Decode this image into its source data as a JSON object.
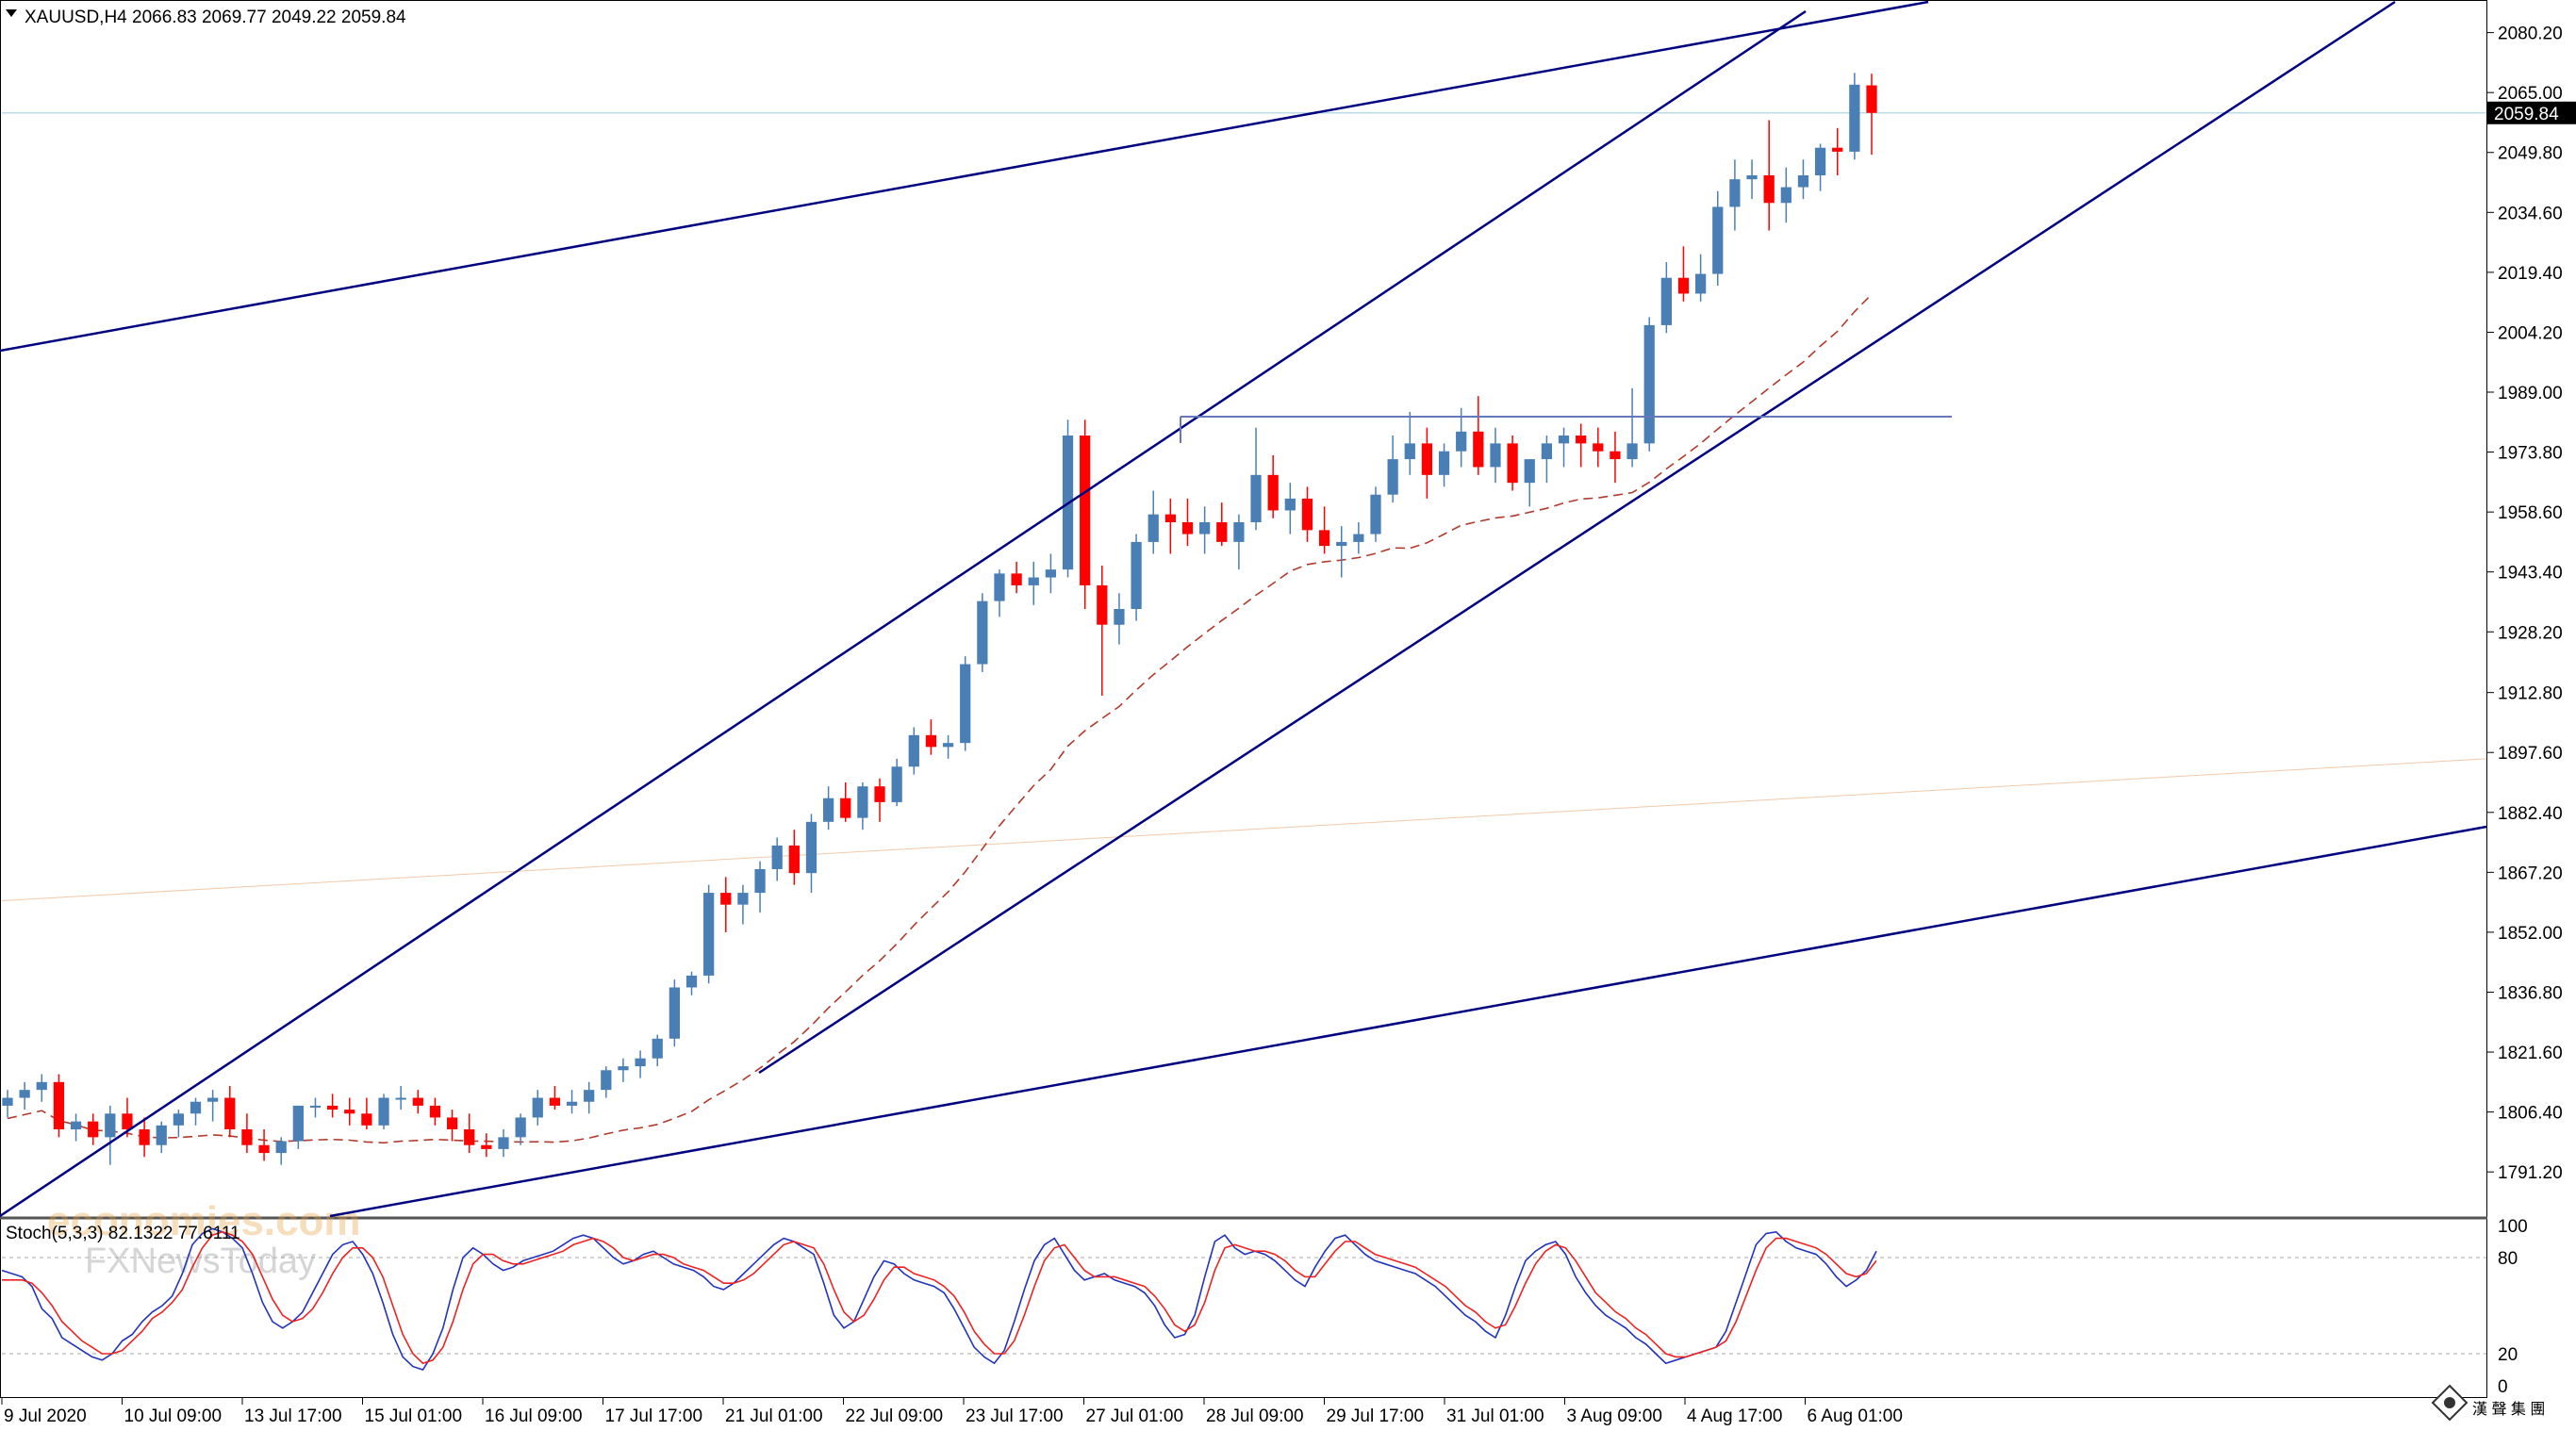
{
  "window": {
    "symbol_header": "XAUUSD,H4  2066.83 2069.77 2049.22 2059.84",
    "current_price_label": "2059.84"
  },
  "stoch_label": "Stoch(5,3,3) 82.1322 77.6111",
  "watermark": {
    "line1": "economies.com",
    "line2": "FXNewsToday",
    "corner_logo_text": "漢 聲 集 團"
  },
  "colors": {
    "bull": "#4a7fb5",
    "bear": "#ff0000",
    "channel": "#000080",
    "resistance": "#6677bb",
    "ma_dashed": "#b03a2e",
    "ma_faint": "#f2c8a8",
    "price_line": "#b8dde8",
    "stoch_main": "#2233bb",
    "stoch_signal": "#ee2222"
  },
  "chart_data": {
    "type": "candlestick",
    "title": "XAUUSD,H4",
    "ylim": [
      1780,
      2088
    ],
    "y_ticks": [
      "2080.20",
      "2065.00",
      "2049.80",
      "2034.60",
      "2019.40",
      "2004.20",
      "1989.00",
      "1973.80",
      "1958.60",
      "1943.40",
      "1928.20",
      "1912.80",
      "1897.60",
      "1882.40",
      "1867.20",
      "1852.00",
      "1836.80",
      "1821.60",
      "1806.40",
      "1791.20"
    ],
    "x_labels": [
      "9 Jul 2020",
      "10 Jul 09:00",
      "13 Jul 17:00",
      "15 Jul 01:00",
      "16 Jul 09:00",
      "17 Jul 17:00",
      "21 Jul 01:00",
      "22 Jul 09:00",
      "23 Jul 17:00",
      "27 Jul 01:00",
      "28 Jul 09:00",
      "29 Jul 17:00",
      "31 Jul 01:00",
      "3 Aug 09:00",
      "4 Aug 17:00",
      "6 Aug 01:00"
    ],
    "candles_ohlc": [
      [
        1808,
        1812,
        1805,
        1810
      ],
      [
        1810,
        1814,
        1807,
        1812
      ],
      [
        1812,
        1816,
        1809,
        1814
      ],
      [
        1814,
        1816,
        1800,
        1802
      ],
      [
        1802,
        1806,
        1799,
        1804
      ],
      [
        1804,
        1806,
        1798,
        1800
      ],
      [
        1800,
        1808,
        1793,
        1806
      ],
      [
        1806,
        1810,
        1800,
        1802
      ],
      [
        1802,
        1805,
        1795,
        1798
      ],
      [
        1798,
        1804,
        1796,
        1803
      ],
      [
        1803,
        1807,
        1800,
        1806
      ],
      [
        1806,
        1810,
        1803,
        1809
      ],
      [
        1809,
        1812,
        1804,
        1810
      ],
      [
        1810,
        1813,
        1800,
        1802
      ],
      [
        1802,
        1806,
        1796,
        1798
      ],
      [
        1798,
        1802,
        1794,
        1796
      ],
      [
        1796,
        1800,
        1793,
        1799
      ],
      [
        1799,
        1808,
        1797,
        1808
      ],
      [
        1808,
        1810,
        1805,
        1808
      ],
      [
        1808,
        1811,
        1805,
        1807
      ],
      [
        1807,
        1810,
        1803,
        1806
      ],
      [
        1806,
        1810,
        1802,
        1803
      ],
      [
        1803,
        1811,
        1802,
        1810
      ],
      [
        1810,
        1813,
        1807,
        1810
      ],
      [
        1810,
        1812,
        1806,
        1808
      ],
      [
        1808,
        1810,
        1803,
        1805
      ],
      [
        1805,
        1807,
        1799,
        1802
      ],
      [
        1802,
        1806,
        1796,
        1798
      ],
      [
        1798,
        1801,
        1795,
        1797
      ],
      [
        1797,
        1802,
        1795,
        1800
      ],
      [
        1800,
        1806,
        1798,
        1805
      ],
      [
        1805,
        1812,
        1803,
        1810
      ],
      [
        1810,
        1813,
        1807,
        1808
      ],
      [
        1808,
        1812,
        1806,
        1809
      ],
      [
        1809,
        1814,
        1806,
        1812
      ],
      [
        1812,
        1818,
        1810,
        1817
      ],
      [
        1817,
        1820,
        1814,
        1818
      ],
      [
        1818,
        1822,
        1815,
        1820
      ],
      [
        1820,
        1826,
        1818,
        1825
      ],
      [
        1825,
        1840,
        1823,
        1838
      ],
      [
        1838,
        1842,
        1836,
        1841
      ],
      [
        1841,
        1864,
        1839,
        1862
      ],
      [
        1862,
        1866,
        1852,
        1859
      ],
      [
        1859,
        1864,
        1854,
        1862
      ],
      [
        1862,
        1870,
        1857,
        1868
      ],
      [
        1868,
        1876,
        1865,
        1874
      ],
      [
        1874,
        1878,
        1864,
        1867
      ],
      [
        1867,
        1882,
        1862,
        1880
      ],
      [
        1880,
        1889,
        1878,
        1886
      ],
      [
        1886,
        1890,
        1880,
        1881
      ],
      [
        1881,
        1890,
        1878,
        1889
      ],
      [
        1889,
        1891,
        1880,
        1885
      ],
      [
        1885,
        1896,
        1884,
        1894
      ],
      [
        1894,
        1904,
        1892,
        1902
      ],
      [
        1902,
        1906,
        1897,
        1899
      ],
      [
        1899,
        1902,
        1896,
        1900
      ],
      [
        1900,
        1922,
        1898,
        1920
      ],
      [
        1920,
        1938,
        1918,
        1936
      ],
      [
        1936,
        1944,
        1932,
        1943
      ],
      [
        1943,
        1946,
        1938,
        1940
      ],
      [
        1940,
        1946,
        1935,
        1942
      ],
      [
        1942,
        1948,
        1938,
        1944
      ],
      [
        1944,
        1982,
        1942,
        1978
      ],
      [
        1978,
        1982,
        1934,
        1940
      ],
      [
        1940,
        1945,
        1912,
        1930
      ],
      [
        1930,
        1938,
        1925,
        1934
      ],
      [
        1934,
        1953,
        1931,
        1951
      ],
      [
        1951,
        1964,
        1948,
        1958
      ],
      [
        1958,
        1962,
        1948,
        1956
      ],
      [
        1956,
        1962,
        1950,
        1953
      ],
      [
        1953,
        1960,
        1948,
        1956
      ],
      [
        1956,
        1961,
        1950,
        1951
      ],
      [
        1951,
        1958,
        1944,
        1956
      ],
      [
        1956,
        1980,
        1954,
        1968
      ],
      [
        1968,
        1973,
        1957,
        1959
      ],
      [
        1959,
        1966,
        1953,
        1962
      ],
      [
        1962,
        1965,
        1951,
        1954
      ],
      [
        1954,
        1960,
        1948,
        1950
      ],
      [
        1950,
        1955,
        1942,
        1951
      ],
      [
        1951,
        1956,
        1948,
        1953
      ],
      [
        1953,
        1965,
        1951,
        1963
      ],
      [
        1963,
        1978,
        1961,
        1972
      ],
      [
        1972,
        1984,
        1968,
        1976
      ],
      [
        1976,
        1980,
        1962,
        1968
      ],
      [
        1968,
        1976,
        1965,
        1974
      ],
      [
        1974,
        1985,
        1970,
        1979
      ],
      [
        1979,
        1988,
        1968,
        1970
      ],
      [
        1970,
        1980,
        1966,
        1976
      ],
      [
        1976,
        1978,
        1964,
        1966
      ],
      [
        1966,
        1970,
        1960,
        1972
      ],
      [
        1972,
        1978,
        1966,
        1976
      ],
      [
        1976,
        1980,
        1970,
        1978
      ],
      [
        1978,
        1981,
        1970,
        1976
      ],
      [
        1976,
        1980,
        1970,
        1974
      ],
      [
        1974,
        1979,
        1966,
        1972
      ],
      [
        1972,
        1990,
        1970,
        1976
      ],
      [
        1976,
        2008,
        1974,
        2006
      ],
      [
        2006,
        2022,
        2004,
        2018
      ],
      [
        2018,
        2026,
        2012,
        2014
      ],
      [
        2014,
        2024,
        2012,
        2019
      ],
      [
        2019,
        2040,
        2016,
        2036
      ],
      [
        2036,
        2048,
        2030,
        2043
      ],
      [
        2043,
        2048,
        2038,
        2044
      ],
      [
        2044,
        2058,
        2030,
        2037
      ],
      [
        2037,
        2046,
        2032,
        2041
      ],
      [
        2041,
        2048,
        2038,
        2044
      ],
      [
        2044,
        2052,
        2040,
        2051
      ],
      [
        2051,
        2056,
        2044,
        2050
      ],
      [
        2050,
        2070,
        2048,
        2067
      ],
      [
        2066.83,
        2069.77,
        2049.22,
        2059.84
      ]
    ],
    "stochastic": {
      "name": "Stoch(5,3,3)",
      "main_value": 82.1322,
      "signal_value": 77.6111,
      "levels": [
        20,
        80
      ],
      "ylim": [
        0,
        100
      ],
      "main": [
        72,
        70,
        68,
        62,
        48,
        42,
        30,
        26,
        22,
        18,
        16,
        20,
        28,
        32,
        40,
        46,
        50,
        56,
        70,
        88,
        95,
        98,
        96,
        92,
        86,
        70,
        52,
        40,
        36,
        40,
        46,
        58,
        70,
        82,
        88,
        90,
        82,
        70,
        52,
        32,
        18,
        12,
        10,
        20,
        36,
        60,
        80,
        86,
        82,
        76,
        72,
        74,
        78,
        80,
        82,
        84,
        88,
        92,
        94,
        92,
        86,
        80,
        76,
        78,
        82,
        84,
        80,
        76,
        74,
        72,
        68,
        62,
        60,
        64,
        70,
        76,
        82,
        88,
        92,
        90,
        86,
        82,
        64,
        44,
        36,
        40,
        54,
        68,
        78,
        76,
        70,
        66,
        64,
        62,
        58,
        48,
        36,
        24,
        18,
        14,
        22,
        40,
        60,
        78,
        88,
        92,
        82,
        72,
        66,
        68,
        70,
        66,
        64,
        62,
        58,
        50,
        38,
        30,
        32,
        44,
        68,
        90,
        94,
        86,
        82,
        84,
        82,
        78,
        72,
        66,
        62,
        74,
        84,
        92,
        94,
        88,
        82,
        78,
        76,
        74,
        72,
        70,
        66,
        62,
        56,
        50,
        44,
        40,
        34,
        30,
        44,
        62,
        78,
        84,
        88,
        90,
        82,
        68,
        58,
        50,
        44,
        40,
        36,
        30,
        26,
        20,
        14,
        16,
        18,
        20,
        22,
        24,
        34,
        52,
        70,
        88,
        95,
        96,
        90,
        86,
        84,
        82,
        76,
        68,
        62,
        66,
        72,
        84
      ],
      "signal": [
        66,
        66,
        66,
        64,
        58,
        50,
        40,
        34,
        28,
        24,
        20,
        20,
        22,
        28,
        34,
        42,
        46,
        52,
        60,
        74,
        86,
        94,
        96,
        94,
        90,
        82,
        68,
        54,
        44,
        40,
        42,
        48,
        58,
        70,
        80,
        86,
        86,
        80,
        68,
        50,
        32,
        20,
        14,
        16,
        24,
        40,
        60,
        76,
        82,
        82,
        78,
        76,
        76,
        78,
        80,
        82,
        84,
        88,
        90,
        92,
        90,
        86,
        80,
        78,
        80,
        82,
        82,
        80,
        76,
        74,
        72,
        68,
        64,
        64,
        66,
        70,
        76,
        82,
        88,
        90,
        88,
        86,
        76,
        60,
        46,
        40,
        44,
        54,
        66,
        74,
        74,
        70,
        68,
        66,
        62,
        56,
        46,
        34,
        26,
        20,
        20,
        28,
        44,
        62,
        78,
        86,
        88,
        80,
        72,
        68,
        68,
        68,
        66,
        64,
        62,
        56,
        48,
        38,
        34,
        38,
        52,
        72,
        86,
        88,
        86,
        84,
        84,
        82,
        78,
        72,
        68,
        68,
        76,
        84,
        90,
        90,
        86,
        82,
        80,
        78,
        76,
        74,
        70,
        66,
        62,
        56,
        50,
        46,
        40,
        36,
        38,
        50,
        64,
        76,
        84,
        88,
        86,
        78,
        68,
        58,
        52,
        46,
        42,
        36,
        32,
        26,
        20,
        18,
        18,
        20,
        22,
        24,
        28,
        40,
        56,
        72,
        86,
        92,
        92,
        90,
        88,
        86,
        82,
        76,
        70,
        68,
        70,
        78
      ]
    }
  }
}
